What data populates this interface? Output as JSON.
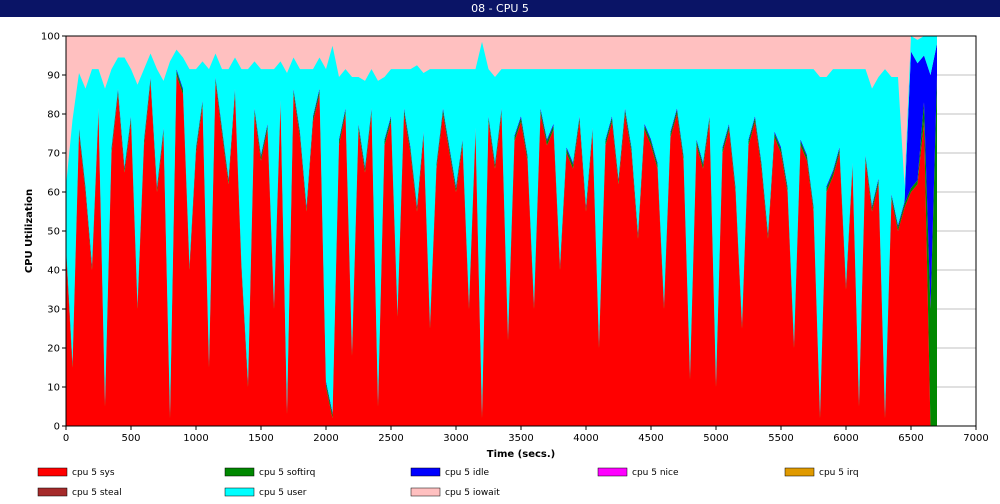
{
  "window": {
    "title": "08 - CPU 5"
  },
  "chart_data": {
    "type": "area",
    "xlabel": "Time (secs.)",
    "ylabel": "CPU Utilization",
    "xlim": [
      0,
      7000
    ],
    "ylim": [
      0,
      100
    ],
    "x_ticks": [
      0,
      500,
      1000,
      1500,
      2000,
      2500,
      3000,
      3500,
      4000,
      4500,
      5000,
      5500,
      6000,
      6500,
      7000
    ],
    "y_ticks": [
      0,
      10,
      20,
      30,
      40,
      50,
      60,
      70,
      80,
      90,
      100
    ],
    "grid": "horizontal",
    "legend_position": "bottom",
    "stacked": true,
    "series": [
      {
        "name": "cpu 5 sys",
        "color": "#ff0000"
      },
      {
        "name": "cpu 5 softirq",
        "color": "#008800"
      },
      {
        "name": "cpu 5 idle",
        "color": "#0000ff"
      },
      {
        "name": "cpu 5 nice",
        "color": "#ff00ff"
      },
      {
        "name": "cpu 5 irq",
        "color": "#e09a00"
      },
      {
        "name": "cpu 5 steal",
        "color": "#a52a2a"
      },
      {
        "name": "cpu 5 user",
        "color": "#00ffff"
      },
      {
        "name": "cpu 5 iowait",
        "color": "#ffc0c0"
      }
    ],
    "sample_series": {
      "x": [
        0,
        50,
        100,
        150,
        200,
        250,
        300,
        350,
        400,
        450,
        500,
        550,
        600,
        650,
        700,
        750,
        800,
        850,
        900,
        950,
        1000,
        1050,
        1100,
        1150,
        1200,
        1250,
        1300,
        1350,
        1400,
        1450,
        1500,
        1550,
        1600,
        1650,
        1700,
        1750,
        1800,
        1850,
        1900,
        1950,
        2000,
        2050,
        2100,
        2150,
        2200,
        2250,
        2300,
        2350,
        2400,
        2450,
        2500,
        2550,
        2600,
        2650,
        2700,
        2750,
        2800,
        2850,
        2900,
        2950,
        3000,
        3050,
        3100,
        3150,
        3200,
        3250,
        3300,
        3350,
        3400,
        3450,
        3500,
        3550,
        3600,
        3650,
        3700,
        3750,
        3800,
        3850,
        3900,
        3950,
        4000,
        4050,
        4100,
        4150,
        4200,
        4250,
        4300,
        4350,
        4400,
        4450,
        4500,
        4550,
        4600,
        4650,
        4700,
        4750,
        4800,
        4850,
        4900,
        4950,
        5000,
        5050,
        5100,
        5150,
        5200,
        5250,
        5300,
        5350,
        5400,
        5450,
        5500,
        5550,
        5600,
        5650,
        5700,
        5750,
        5800,
        5850,
        5900,
        5950,
        6000,
        6050,
        6100,
        6150,
        6200,
        6250,
        6300,
        6350,
        6400,
        6450,
        6500,
        6550,
        6600,
        6650,
        6700
      ],
      "sys": [
        45,
        15,
        75,
        60,
        40,
        80,
        5,
        70,
        85,
        65,
        78,
        30,
        72,
        88,
        60,
        75,
        2,
        90,
        85,
        40,
        70,
        82,
        15,
        88,
        75,
        62,
        85,
        40,
        10,
        80,
        68,
        76,
        30,
        82,
        3,
        85,
        74,
        55,
        78,
        85,
        10,
        2,
        72,
        80,
        18,
        76,
        65,
        80,
        5,
        72,
        78,
        28,
        80,
        70,
        55,
        74,
        25,
        66,
        80,
        70,
        60,
        72,
        30,
        75,
        2,
        78,
        66,
        80,
        22,
        73,
        78,
        68,
        30,
        80,
        72,
        76,
        40,
        70,
        66,
        78,
        55,
        75,
        20,
        72,
        78,
        62,
        80,
        70,
        48,
        76,
        72,
        66,
        30,
        74,
        80,
        68,
        12,
        72,
        66,
        78,
        10,
        70,
        76,
        60,
        25,
        72,
        78,
        66,
        48,
        74,
        70,
        60,
        20,
        72,
        68,
        55,
        2,
        60,
        64,
        70,
        35,
        66,
        5,
        68,
        55,
        62,
        2,
        58,
        50,
        56,
        60,
        62,
        78,
        0,
        0
      ],
      "softirq": [
        1,
        1,
        1,
        1,
        1,
        1,
        1,
        1,
        1,
        1,
        1,
        1,
        1,
        1,
        1,
        1,
        1,
        1,
        1,
        1,
        1,
        1,
        1,
        1,
        1,
        1,
        1,
        1,
        1,
        1,
        1,
        1,
        1,
        1,
        1,
        1,
        1,
        1,
        1,
        1,
        1,
        1,
        1,
        1,
        1,
        1,
        1,
        1,
        1,
        1,
        1,
        1,
        1,
        1,
        1,
        1,
        1,
        1,
        1,
        1,
        1,
        1,
        1,
        1,
        1,
        1,
        1,
        1,
        1,
        1,
        1,
        1,
        1,
        1,
        1,
        1,
        1,
        1,
        1,
        1,
        1,
        1,
        1,
        1,
        1,
        1,
        1,
        1,
        1,
        1,
        1,
        1,
        1,
        1,
        1,
        1,
        1,
        1,
        1,
        1,
        1,
        1,
        1,
        1,
        1,
        1,
        1,
        1,
        1,
        1,
        1,
        1,
        1,
        1,
        1,
        1,
        1,
        1,
        1,
        1,
        1,
        1,
        1,
        1,
        1,
        1,
        1,
        1,
        1,
        1,
        1,
        1,
        5,
        30,
        90
      ],
      "idle": [
        0.5,
        0.5,
        0.5,
        0.5,
        0.5,
        0.5,
        0.5,
        0.5,
        0.5,
        0.5,
        0.5,
        0.5,
        0.5,
        0.5,
        0.5,
        0.5,
        0.5,
        0.5,
        0.5,
        0.5,
        0.5,
        0.5,
        0.5,
        0.5,
        0.5,
        0.5,
        0.5,
        0.5,
        0.5,
        0.5,
        0.5,
        0.5,
        0.5,
        0.5,
        0.5,
        0.5,
        0.5,
        0.5,
        0.5,
        0.5,
        0.5,
        0.5,
        0.5,
        0.5,
        0.5,
        0.5,
        0.5,
        0.5,
        0.5,
        0.5,
        0.5,
        0.5,
        0.5,
        0.5,
        0.5,
        0.5,
        0.5,
        0.5,
        0.5,
        0.5,
        0.5,
        0.5,
        0.5,
        0.5,
        0.5,
        0.5,
        0.5,
        0.5,
        0.5,
        0.5,
        0.5,
        0.5,
        0.5,
        0.5,
        0.5,
        0.5,
        0.5,
        0.5,
        0.5,
        0.5,
        0.5,
        0.5,
        0.5,
        0.5,
        0.5,
        0.5,
        0.5,
        0.5,
        0.5,
        0.5,
        0.5,
        0.5,
        0.5,
        0.5,
        0.5,
        0.5,
        0.5,
        0.5,
        0.5,
        0.5,
        0.5,
        0.5,
        0.5,
        0.5,
        0.5,
        0.5,
        0.5,
        0.5,
        0.5,
        0.5,
        0.5,
        0.5,
        0.5,
        0.5,
        0.5,
        0.5,
        0.5,
        0.5,
        0.5,
        0.5,
        0.5,
        0.5,
        0.5,
        0.5,
        0.5,
        0.5,
        0.5,
        0.5,
        0.5,
        0.5,
        35,
        30,
        12,
        60,
        8
      ],
      "user": [
        15,
        62,
        14,
        25,
        50,
        10,
        80,
        20,
        8,
        28,
        12,
        56,
        18,
        6,
        30,
        12,
        90,
        5,
        8,
        50,
        20,
        10,
        75,
        6,
        15,
        28,
        8,
        50,
        80,
        12,
        22,
        14,
        60,
        10,
        86,
        8,
        16,
        35,
        12,
        8,
        80,
        94,
        16,
        10,
        70,
        12,
        22,
        10,
        82,
        16,
        12,
        62,
        10,
        20,
        36,
        15,
        65,
        24,
        10,
        20,
        30,
        18,
        60,
        15,
        95,
        12,
        22,
        10,
        68,
        17,
        12,
        22,
        60,
        10,
        18,
        14,
        50,
        20,
        24,
        12,
        35,
        15,
        70,
        18,
        12,
        28,
        10,
        20,
        42,
        14,
        18,
        24,
        60,
        16,
        10,
        22,
        78,
        18,
        24,
        12,
        80,
        20,
        14,
        30,
        65,
        18,
        12,
        24,
        42,
        16,
        20,
        30,
        70,
        18,
        22,
        35,
        86,
        28,
        26,
        20,
        55,
        24,
        85,
        22,
        30,
        26,
        88,
        30,
        38,
        4,
        5,
        6,
        10,
        10,
        2
      ]
    }
  }
}
